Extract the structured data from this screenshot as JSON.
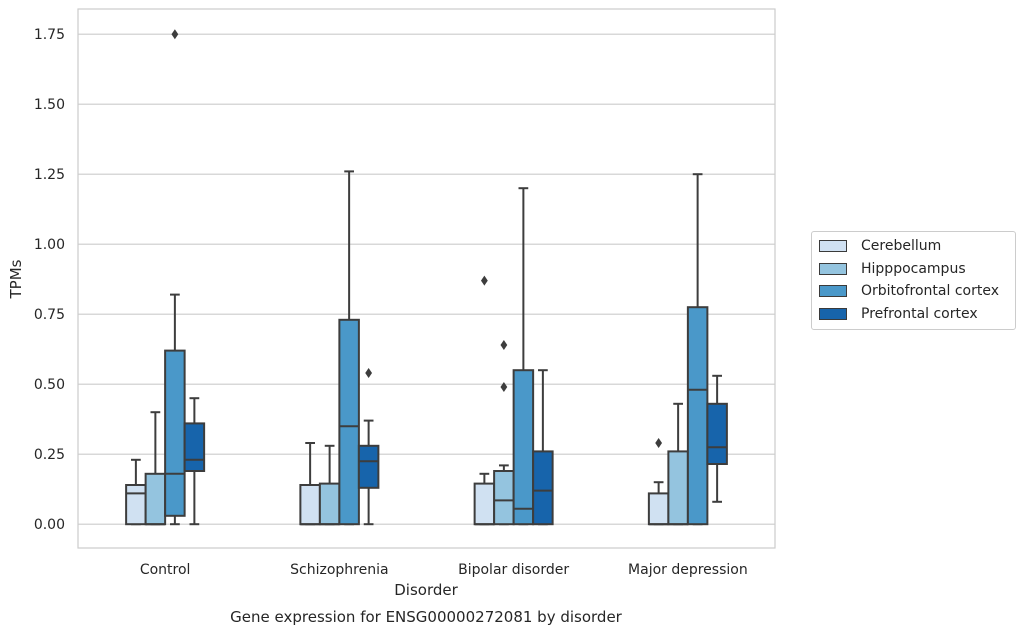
{
  "chart_data": {
    "type": "boxplot",
    "title": "Gene expression for ENSG00000272081 by disorder",
    "xlabel": "Disorder",
    "ylabel": "TPMs",
    "ylim": [
      -0.085,
      1.84
    ],
    "yticks": [
      0.0,
      0.25,
      0.5,
      0.75,
      1.0,
      1.25,
      1.5,
      1.75
    ],
    "ytick_labels": [
      "0.00",
      "0.25",
      "0.50",
      "0.75",
      "1.00",
      "1.25",
      "1.50",
      "1.75"
    ],
    "grid": "horizontal",
    "legend_position": "right",
    "categories": [
      "Control",
      "Schizophrenia",
      "Bipolar disorder",
      "Major depression"
    ],
    "series": [
      {
        "name": "Cerebellum",
        "color": "#d0e1f2",
        "boxes": [
          {
            "whislo": 0.0,
            "q1": 0.0,
            "med": 0.11,
            "q3": 0.14,
            "whishi": 0.23,
            "fliers": []
          },
          {
            "whislo": 0.0,
            "q1": 0.0,
            "med": 0.0,
            "q3": 0.14,
            "whishi": 0.29,
            "fliers": []
          },
          {
            "whislo": 0.0,
            "q1": 0.0,
            "med": 0.0,
            "q3": 0.145,
            "whishi": 0.18,
            "fliers": [
              0.87
            ]
          },
          {
            "whislo": 0.0,
            "q1": 0.0,
            "med": 0.0,
            "q3": 0.11,
            "whishi": 0.15,
            "fliers": [
              0.29
            ]
          }
        ]
      },
      {
        "name": "Hipppocampus",
        "color": "#94c4df",
        "boxes": [
          {
            "whislo": 0.0,
            "q1": 0.0,
            "med": 0.0,
            "q3": 0.18,
            "whishi": 0.4,
            "fliers": []
          },
          {
            "whislo": 0.0,
            "q1": 0.0,
            "med": 0.0,
            "q3": 0.145,
            "whishi": 0.28,
            "fliers": []
          },
          {
            "whislo": 0.0,
            "q1": 0.0,
            "med": 0.085,
            "q3": 0.19,
            "whishi": 0.21,
            "fliers": [
              0.49,
              0.64
            ]
          },
          {
            "whislo": 0.0,
            "q1": 0.0,
            "med": 0.0,
            "q3": 0.26,
            "whishi": 0.43,
            "fliers": []
          }
        ]
      },
      {
        "name": "Orbitofrontal cortex",
        "color": "#4a98c9",
        "boxes": [
          {
            "whislo": 0.0,
            "q1": 0.03,
            "med": 0.18,
            "q3": 0.62,
            "whishi": 0.82,
            "fliers": [
              1.75
            ]
          },
          {
            "whislo": 0.0,
            "q1": 0.0,
            "med": 0.35,
            "q3": 0.73,
            "whishi": 1.26,
            "fliers": []
          },
          {
            "whislo": 0.0,
            "q1": 0.0,
            "med": 0.055,
            "q3": 0.55,
            "whishi": 1.2,
            "fliers": []
          },
          {
            "whislo": 0.0,
            "q1": 0.0,
            "med": 0.48,
            "q3": 0.775,
            "whishi": 1.25,
            "fliers": []
          }
        ]
      },
      {
        "name": "Prefrontal cortex",
        "color": "#1764ab",
        "boxes": [
          {
            "whislo": 0.0,
            "q1": 0.19,
            "med": 0.23,
            "q3": 0.36,
            "whishi": 0.45,
            "fliers": []
          },
          {
            "whislo": 0.0,
            "q1": 0.13,
            "med": 0.225,
            "q3": 0.28,
            "whishi": 0.37,
            "fliers": [
              0.54
            ]
          },
          {
            "whislo": 0.0,
            "q1": 0.0,
            "med": 0.12,
            "q3": 0.26,
            "whishi": 0.55,
            "fliers": []
          },
          {
            "whislo": 0.08,
            "q1": 0.215,
            "med": 0.275,
            "q3": 0.43,
            "whishi": 0.53,
            "fliers": []
          }
        ]
      }
    ]
  }
}
